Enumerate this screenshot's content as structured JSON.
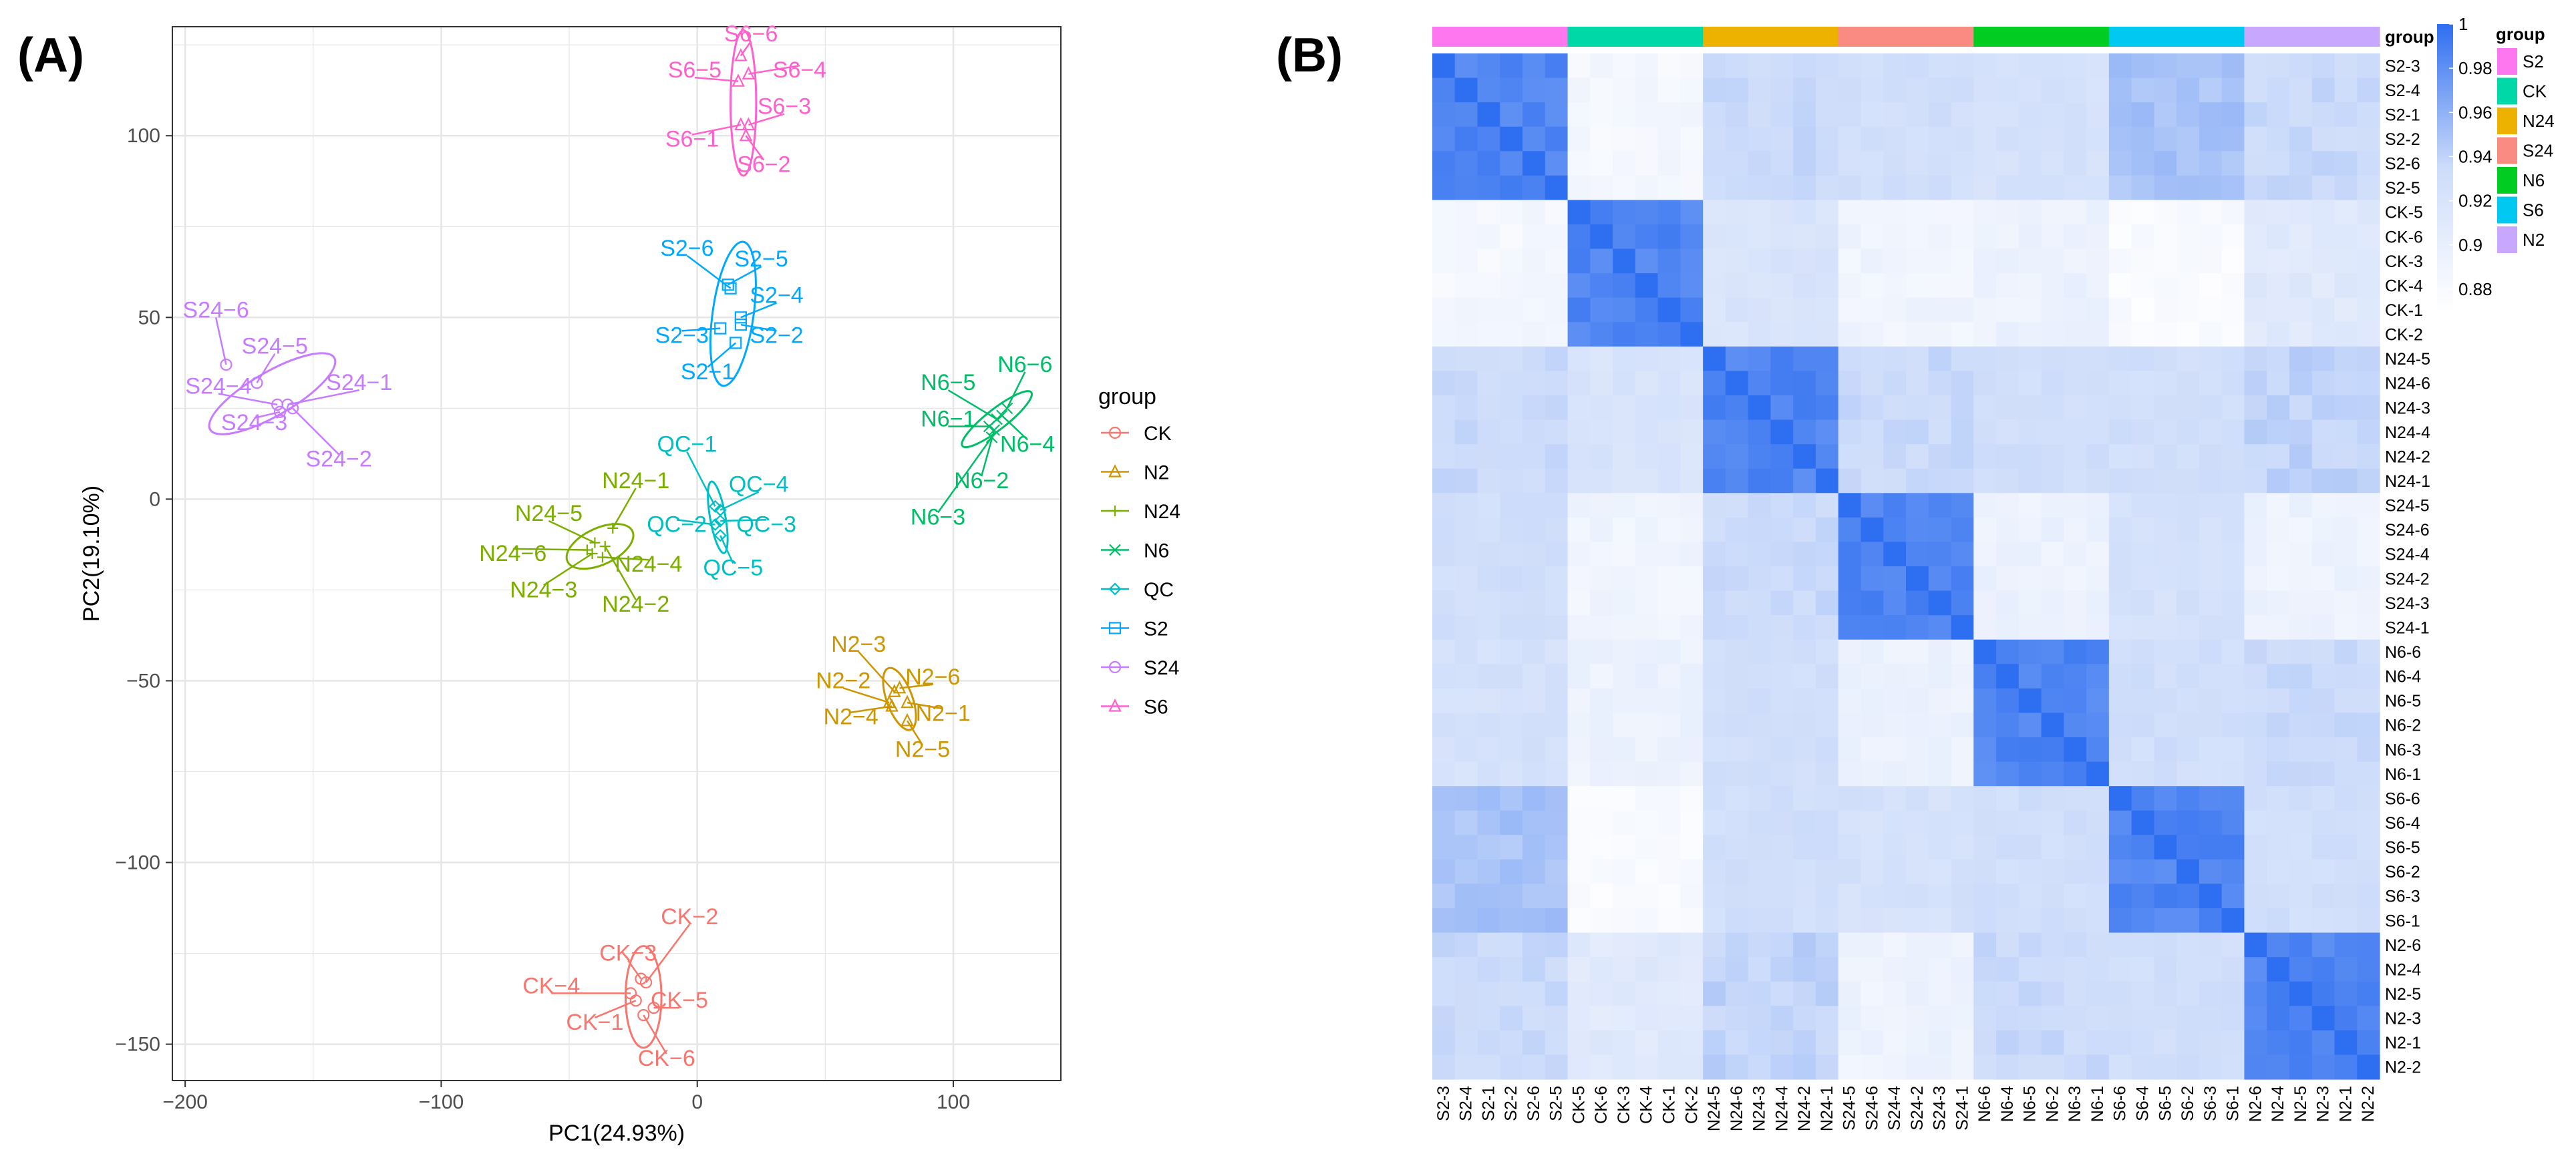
{
  "panels": {
    "a_label": "(A)",
    "b_label": "(B)"
  },
  "legend": {
    "title": "group"
  },
  "heatmap_legend": {
    "title": "group"
  },
  "colors": {
    "CK": "#F8766D",
    "N2": "#CD9600",
    "N24": "#7CAE00",
    "N6": "#00BE67",
    "QC": "#00BFC4",
    "S2": "#00A9FF",
    "S24": "#C77CFF",
    "S6": "#FF61CC"
  },
  "chart_data": [
    {
      "type": "scatter",
      "title": "",
      "xlabel": "PC1(24.93%)",
      "ylabel": "PC2(19.10%)",
      "xlim": [
        -205,
        142
      ],
      "ylim": [
        -160,
        130
      ],
      "xticks": [
        -200,
        -100,
        0,
        100
      ],
      "yticks": [
        -150,
        -100,
        -50,
        0,
        50,
        100
      ],
      "grid": true,
      "legend_position": "right",
      "groups": [
        {
          "name": "CK",
          "marker": "circle",
          "ellipse": {
            "cx": -21,
            "cy": -137,
            "rx": 7,
            "ry": 14,
            "angle_deg": 0
          },
          "points": [
            {
              "label": "CK-1",
              "x": -24,
              "y": -138,
              "lx": -40,
              "ly": -146
            },
            {
              "label": "CK-2",
              "x": -20,
              "y": -133,
              "lx": -3,
              "ly": -117
            },
            {
              "label": "CK-3",
              "x": -22,
              "y": -132,
              "lx": -27,
              "ly": -127
            },
            {
              "label": "CK-4",
              "x": -26,
              "y": -136,
              "lx": -57,
              "ly": -136
            },
            {
              "label": "CK-5",
              "x": -17,
              "y": -140,
              "lx": -7,
              "ly": -140
            },
            {
              "label": "CK-6",
              "x": -21,
              "y": -142,
              "lx": -12,
              "ly": -156
            }
          ]
        },
        {
          "name": "N2",
          "marker": "triangle",
          "ellipse": {
            "cx": 79,
            "cy": -55,
            "rx": 5,
            "ry": 9,
            "angle_deg": -20
          },
          "points": [
            {
              "label": "N2-1",
              "x": 82,
              "y": -56,
              "lx": 96,
              "ly": -61
            },
            {
              "label": "N2-2",
              "x": 75,
              "y": -56,
              "lx": 57,
              "ly": -52
            },
            {
              "label": "N2-3",
              "x": 77,
              "y": -53,
              "lx": 63,
              "ly": -42
            },
            {
              "label": "N2-4",
              "x": 76,
              "y": -57,
              "lx": 60,
              "ly": -62
            },
            {
              "label": "N2-5",
              "x": 82,
              "y": -61,
              "lx": 88,
              "ly": -71
            },
            {
              "label": "N2-6",
              "x": 79,
              "y": -52,
              "lx": 92,
              "ly": -51
            }
          ]
        },
        {
          "name": "N24",
          "marker": "plus",
          "ellipse": {
            "cx": -38,
            "cy": -13,
            "rx": 14,
            "ry": 5,
            "angle_deg": -25
          },
          "points": [
            {
              "label": "N24-1",
              "x": -33,
              "y": -8,
              "lx": -24,
              "ly": 3
            },
            {
              "label": "N24-2",
              "x": -36,
              "y": -13,
              "lx": -24,
              "ly": -31
            },
            {
              "label": "N24-3",
              "x": -41,
              "y": -15,
              "lx": -60,
              "ly": -27
            },
            {
              "label": "N24-4",
              "x": -37,
              "y": -16,
              "lx": -19,
              "ly": -20
            },
            {
              "label": "N24-5",
              "x": -40,
              "y": -12,
              "lx": -58,
              "ly": -6
            },
            {
              "label": "N24-6",
              "x": -43,
              "y": -14,
              "lx": -72,
              "ly": -17
            }
          ]
        },
        {
          "name": "N6",
          "marker": "x",
          "ellipse": {
            "cx": 117,
            "cy": 22,
            "rx": 4,
            "ry": 12,
            "angle_deg": 52
          },
          "points": [
            {
              "label": "N6-1",
              "x": 114,
              "y": 20,
              "lx": 98,
              "ly": 20
            },
            {
              "label": "N6-2",
              "x": 116,
              "y": 19,
              "lx": 111,
              "ly": 3
            },
            {
              "label": "N6-3",
              "x": 115,
              "y": 17,
              "lx": 94,
              "ly": -7
            },
            {
              "label": "N6-4",
              "x": 119,
              "y": 23,
              "lx": 129,
              "ly": 13
            },
            {
              "label": "N6-5",
              "x": 117,
              "y": 22,
              "lx": 98,
              "ly": 30
            },
            {
              "label": "N6-6",
              "x": 121,
              "y": 25,
              "lx": 128,
              "ly": 35
            }
          ]
        },
        {
          "name": "QC",
          "marker": "diamond",
          "ellipse": {
            "cx": 8,
            "cy": -5,
            "rx": 3,
            "ry": 10,
            "angle_deg": -10
          },
          "points": [
            {
              "label": "QC-1",
              "x": 7,
              "y": -2,
              "lx": -4,
              "ly": 13
            },
            {
              "label": "QC-2",
              "x": 7,
              "y": -7,
              "lx": -8,
              "ly": -9
            },
            {
              "label": "QC-3",
              "x": 9,
              "y": -6,
              "lx": 27,
              "ly": -9
            },
            {
              "label": "QC-4",
              "x": 9,
              "y": -3,
              "lx": 24,
              "ly": 2
            },
            {
              "label": "QC-5",
              "x": 9,
              "y": -10,
              "lx": 14,
              "ly": -21
            }
          ]
        },
        {
          "name": "S2",
          "marker": "square",
          "ellipse": {
            "cx": 14,
            "cy": 51,
            "rx": 8,
            "ry": 20,
            "angle_deg": 8
          },
          "points": [
            {
              "label": "S2-1",
              "x": 15,
              "y": 43,
              "lx": 4,
              "ly": 33
            },
            {
              "label": "S2-2",
              "x": 17,
              "y": 48,
              "lx": 31,
              "ly": 43
            },
            {
              "label": "S2-3",
              "x": 9,
              "y": 47,
              "lx": -6,
              "ly": 43
            },
            {
              "label": "S2-4",
              "x": 17,
              "y": 50,
              "lx": 31,
              "ly": 54
            },
            {
              "label": "S2-5",
              "x": 12,
              "y": 59,
              "lx": 25,
              "ly": 64
            },
            {
              "label": "S2-6",
              "x": 13,
              "y": 58,
              "lx": -4,
              "ly": 67
            }
          ]
        },
        {
          "name": "S24",
          "marker": "circle",
          "ellipse": {
            "cx": -166,
            "cy": 29,
            "rx": 28,
            "ry": 6,
            "angle_deg": -30
          },
          "points": [
            {
              "label": "S24-1",
              "x": -160,
              "y": 26,
              "lx": -132,
              "ly": 30
            },
            {
              "label": "S24-2",
              "x": -158,
              "y": 25,
              "lx": -140,
              "ly": 9
            },
            {
              "label": "S24-3",
              "x": -163,
              "y": 24,
              "lx": -173,
              "ly": 19
            },
            {
              "label": "S24-4",
              "x": -164,
              "y": 26,
              "lx": -187,
              "ly": 29
            },
            {
              "label": "S24-5",
              "x": -172,
              "y": 32,
              "lx": -165,
              "ly": 40
            },
            {
              "label": "S24-6",
              "x": -184,
              "y": 37,
              "lx": -188,
              "ly": 50
            }
          ]
        },
        {
          "name": "S6",
          "marker": "triangle",
          "ellipse": {
            "cx": 18,
            "cy": 109,
            "rx": 5,
            "ry": 20,
            "angle_deg": 0
          },
          "points": [
            {
              "label": "S6-1",
              "x": 17,
              "y": 103,
              "lx": -2,
              "ly": 97
            },
            {
              "label": "S6-2",
              "x": 19,
              "y": 100,
              "lx": 26,
              "ly": 90
            },
            {
              "label": "S6-3",
              "x": 20,
              "y": 103,
              "lx": 34,
              "ly": 106
            },
            {
              "label": "S6-4",
              "x": 20,
              "y": 117,
              "lx": 40,
              "ly": 116
            },
            {
              "label": "S6-5",
              "x": 16,
              "y": 115,
              "lx": -1,
              "ly": 116
            },
            {
              "label": "S6-6",
              "x": 17,
              "y": 122,
              "lx": 21,
              "ly": 126
            }
          ]
        }
      ]
    },
    {
      "type": "heatmap",
      "title": "",
      "row_labels": [
        "S2-3",
        "S2-4",
        "S2-1",
        "S2-2",
        "S2-6",
        "S2-5",
        "CK-5",
        "CK-6",
        "CK-3",
        "CK-4",
        "CK-1",
        "CK-2",
        "N24-5",
        "N24-6",
        "N24-3",
        "N24-4",
        "N24-2",
        "N24-1",
        "S24-5",
        "S24-6",
        "S24-4",
        "S24-2",
        "S24-3",
        "S24-1",
        "N6-6",
        "N6-4",
        "N6-5",
        "N6-2",
        "N6-3",
        "N6-1",
        "S6-6",
        "S6-4",
        "S6-5",
        "S6-2",
        "S6-3",
        "S6-1",
        "N2-6",
        "N2-4",
        "N2-5",
        "N2-3",
        "N2-1",
        "N2-2"
      ],
      "col_labels": [
        "S2-3",
        "S2-4",
        "S2-1",
        "S2-2",
        "S2-6",
        "S2-5",
        "CK-5",
        "CK-6",
        "CK-3",
        "CK-4",
        "CK-1",
        "CK-2",
        "N24-5",
        "N24-6",
        "N24-3",
        "N24-4",
        "N24-2",
        "N24-1",
        "S24-5",
        "S24-6",
        "S24-4",
        "S24-2",
        "S24-3",
        "S24-1",
        "N6-6",
        "N6-4",
        "N6-5",
        "N6-2",
        "N6-3",
        "N6-1",
        "S6-6",
        "S6-4",
        "S6-5",
        "S6-2",
        "S6-3",
        "S6-1",
        "N2-6",
        "N2-4",
        "N2-5",
        "N2-3",
        "N2-1",
        "N2-2"
      ],
      "annotation_groups": [
        "S2",
        "CK",
        "N24",
        "S24",
        "N6",
        "S6",
        "N2"
      ],
      "annotation_colors": {
        "S2": "#FF77EE",
        "CK": "#00D8A8",
        "N24": "#EDB200",
        "S24": "#FA8B82",
        "N6": "#00CC22",
        "S6": "#00C8F0",
        "N2": "#C8A8FF"
      },
      "legend_groups": [
        "S2",
        "CK",
        "N24",
        "S24",
        "N6",
        "S6",
        "N2"
      ],
      "group_block_correlation": [
        [
          0.99,
          0.885,
          0.935,
          0.93,
          0.925,
          0.95,
          0.935
        ],
        [
          0.885,
          0.99,
          0.92,
          0.89,
          0.895,
          0.878,
          0.91
        ],
        [
          0.935,
          0.92,
          0.99,
          0.935,
          0.93,
          0.93,
          0.94
        ],
        [
          0.93,
          0.89,
          0.935,
          0.99,
          0.895,
          0.925,
          0.893
        ],
        [
          0.925,
          0.895,
          0.93,
          0.895,
          0.99,
          0.93,
          0.935
        ],
        [
          0.95,
          0.878,
          0.93,
          0.925,
          0.93,
          0.99,
          0.93
        ],
        [
          0.935,
          0.91,
          0.94,
          0.893,
          0.935,
          0.93,
          0.99
        ]
      ],
      "colorbar": {
        "min": 0.87,
        "max": 1.0,
        "ticks": [
          "1",
          "0.98",
          "0.96",
          "0.94",
          "0.92",
          "0.9",
          "0.88"
        ],
        "low_color": "#ffffff",
        "high_color": "#2E6EF0"
      }
    }
  ]
}
